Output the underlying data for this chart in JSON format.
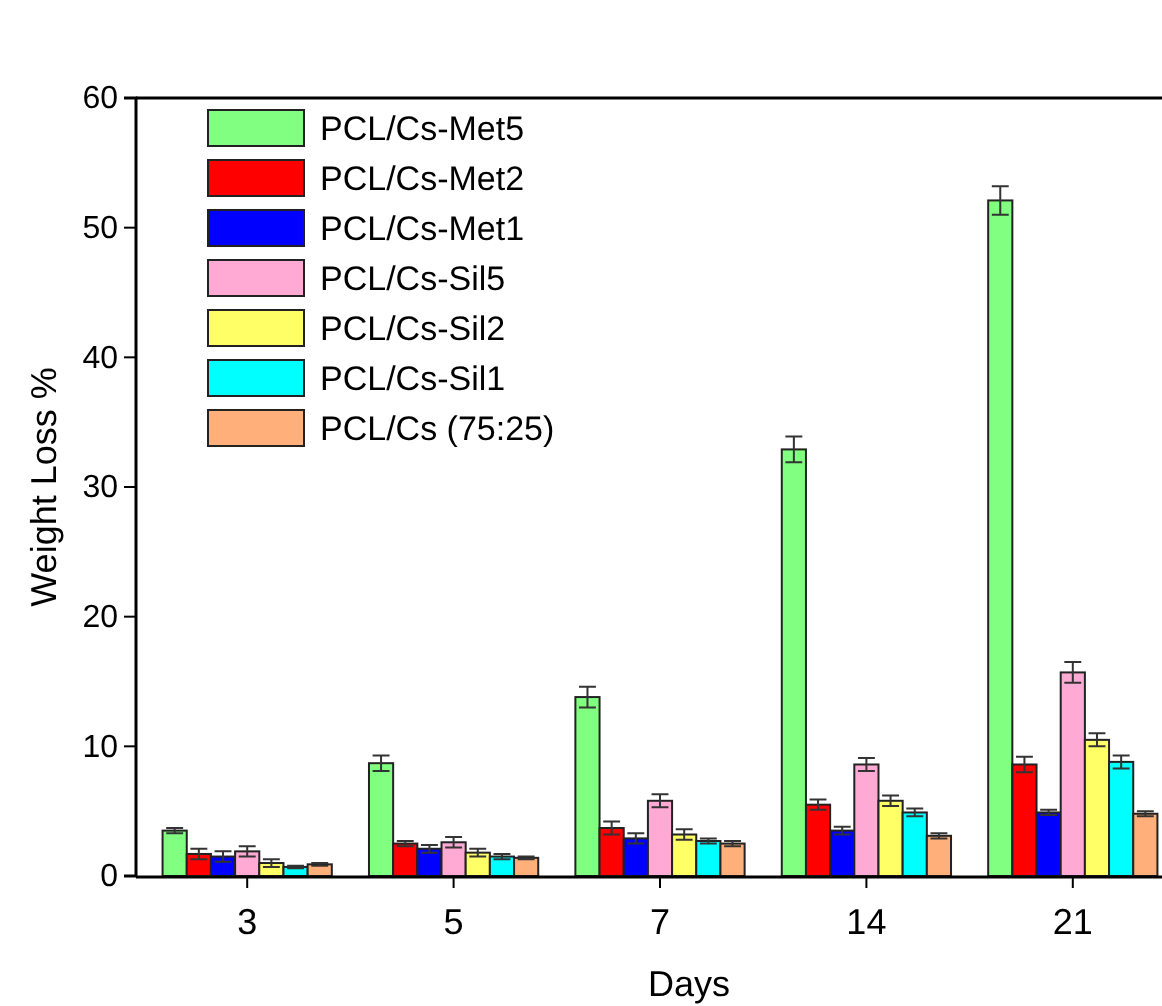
{
  "chart_data": {
    "type": "bar",
    "xlabel": "Days",
    "ylabel": "Weight Loss %",
    "categories": [
      "3",
      "5",
      "7",
      "14",
      "21"
    ],
    "ylim": [
      0,
      60
    ],
    "yticks": [
      0,
      10,
      20,
      30,
      40,
      50,
      60
    ],
    "legend": "top left",
    "series": [
      {
        "name": "PCL/Cs-Met5",
        "color": "#80ff80",
        "values": [
          3.5,
          8.7,
          13.8,
          32.9,
          52.1
        ],
        "errors": [
          0.2,
          0.6,
          0.8,
          1.0,
          1.1
        ]
      },
      {
        "name": "PCL/Cs-Met2",
        "color": "#ff0000",
        "values": [
          1.7,
          2.5,
          3.7,
          5.5,
          8.6
        ],
        "errors": [
          0.4,
          0.2,
          0.5,
          0.4,
          0.6
        ]
      },
      {
        "name": "PCL/Cs-Met1",
        "color": "#0000ff",
        "values": [
          1.5,
          2.1,
          2.9,
          3.5,
          4.9
        ],
        "errors": [
          0.4,
          0.3,
          0.4,
          0.3,
          0.2
        ]
      },
      {
        "name": "PCL/Cs-Sil5",
        "color": "#ffaad4",
        "values": [
          1.9,
          2.6,
          5.8,
          8.6,
          15.7
        ],
        "errors": [
          0.4,
          0.4,
          0.5,
          0.5,
          0.8
        ]
      },
      {
        "name": "PCL/Cs-Sil2",
        "color": "#ffff66",
        "values": [
          1.0,
          1.8,
          3.2,
          5.8,
          10.5
        ],
        "errors": [
          0.3,
          0.3,
          0.4,
          0.4,
          0.5
        ]
      },
      {
        "name": "PCL/Cs-Sil1",
        "color": "#00ffff",
        "values": [
          0.7,
          1.5,
          2.7,
          4.9,
          8.8
        ],
        "errors": [
          0.1,
          0.2,
          0.2,
          0.3,
          0.5
        ]
      },
      {
        "name": "PCL/Cs (75:25)",
        "color": "#ffb07a",
        "values": [
          0.9,
          1.4,
          2.5,
          3.1,
          4.8
        ],
        "errors": [
          0.1,
          0.1,
          0.2,
          0.2,
          0.2
        ]
      }
    ]
  }
}
